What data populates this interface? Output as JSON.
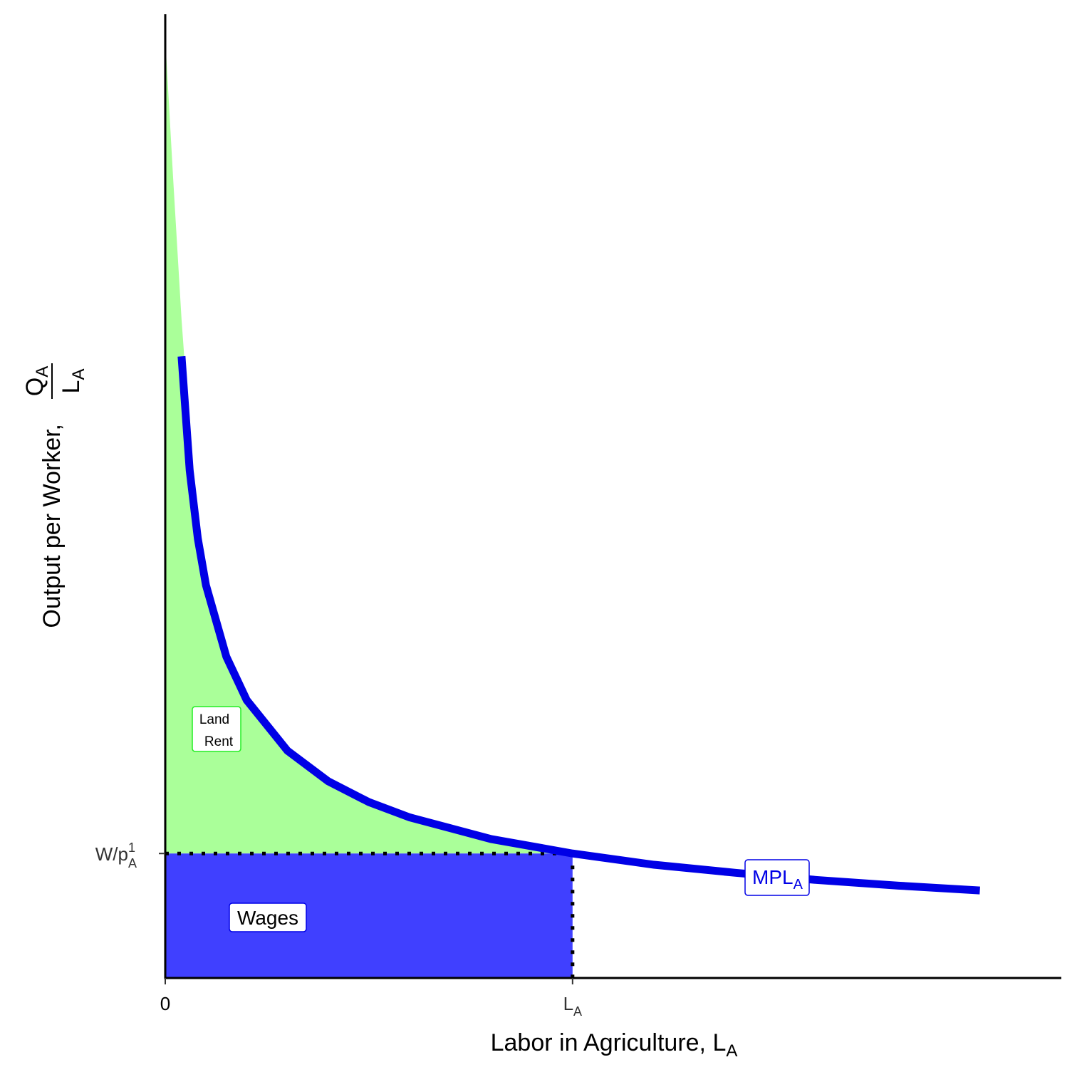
{
  "chart_data": {
    "type": "line",
    "x_label": "Labor in Agriculture, L",
    "x_label_sub": "A",
    "y_label": "Output per Worker,",
    "y_label_num": "Q",
    "y_label_num_sub": "A",
    "y_label_den": "L",
    "y_label_den_sub": "A",
    "xlim": [
      0,
      11
    ],
    "ylim": [
      0,
      12
    ],
    "xticks": [
      0,
      {
        "value": 5,
        "label": "L",
        "label_sub": "A"
      }
    ],
    "yticks": [
      {
        "value": 1.55,
        "label": "W/p",
        "label_sub": "A",
        "label_sup": "1"
      }
    ],
    "series": [
      {
        "name": "MPL",
        "name_sub": "A",
        "color": "#0000e6",
        "x": [
          0.2,
          0.3,
          0.4,
          0.5,
          0.75,
          1,
          1.5,
          2,
          2.5,
          3,
          4,
          5,
          6,
          7,
          8,
          9,
          10
        ],
        "values": [
          7.74,
          6.32,
          5.47,
          4.89,
          4.0,
          3.46,
          2.83,
          2.45,
          2.19,
          2.0,
          1.73,
          1.55,
          1.41,
          1.31,
          1.22,
          1.15,
          1.09
        ]
      }
    ],
    "land_rent": {
      "label": "Land",
      "label2": "Rent",
      "color": "#aaff99",
      "text_color": "#22ee22",
      "x": [
        0,
        0.1,
        0.2,
        0.3,
        0.4,
        0.5,
        0.75,
        1,
        1.5,
        2,
        2.5,
        3,
        4,
        5
      ],
      "values": [
        11.7,
        9.9,
        8.2,
        6.8,
        5.8,
        5.0,
        4.05,
        3.5,
        2.85,
        2.46,
        2.2,
        2.0,
        1.73,
        1.55
      ]
    },
    "wages": {
      "label": "Wages",
      "x": 5,
      "y": 1.55,
      "color": "#4040ff",
      "text_color": "#0000e6"
    }
  }
}
